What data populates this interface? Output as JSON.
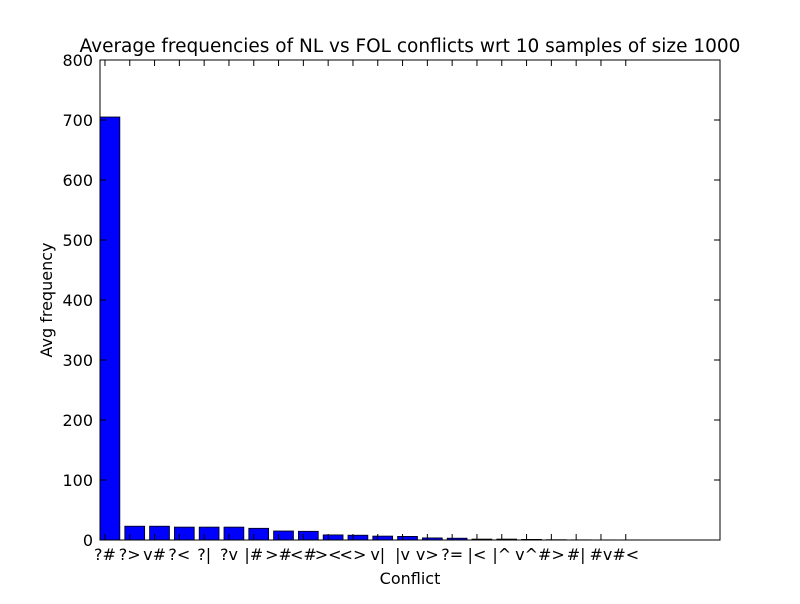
{
  "chart_data": {
    "type": "bar",
    "title": "Average frequencies of NL vs FOL conflicts wrt 10 samples of size 1000",
    "xlabel": "Conflict",
    "ylabel": "Avg frequency",
    "ylim": [
      0,
      800
    ],
    "yticks": [
      0,
      100,
      200,
      300,
      400,
      500,
      600,
      700,
      800
    ],
    "categories": [
      "?#",
      "?>",
      "v#",
      "?<",
      "?|",
      "?v",
      "|#",
      ">#",
      "<#",
      "><",
      "<>",
      "v|",
      "|v",
      "v>",
      "?=",
      "|<",
      "|^",
      "v^",
      "#>",
      "#|",
      "#v",
      "#<"
    ],
    "values": [
      705,
      23,
      23,
      21.5,
      21.5,
      21.5,
      19.5,
      15,
      14.5,
      8.5,
      8,
      6.5,
      6,
      3.5,
      3,
      1.5,
      1.5,
      1,
      0.5,
      0.3,
      0.2,
      0.2
    ],
    "xlim": [
      -0.2,
      24.8
    ],
    "bar_width": 0.8,
    "bar_color": "#0000ff",
    "bar_edge_color": "#000000",
    "grid": false
  }
}
